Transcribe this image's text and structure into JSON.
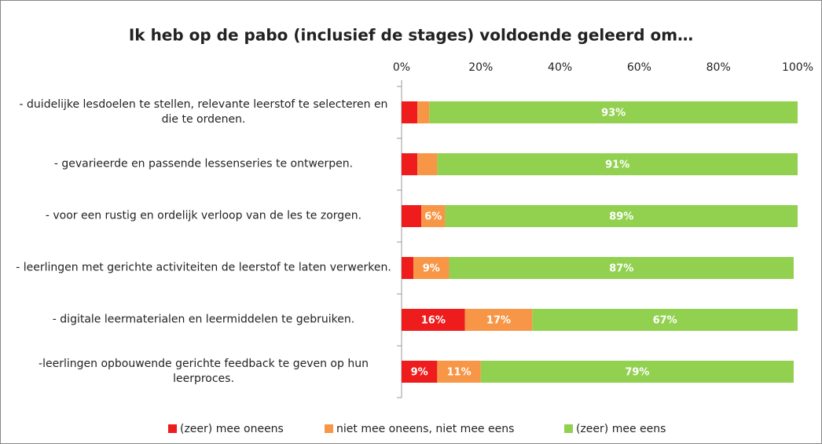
{
  "chart_data": {
    "type": "stacked_bar_horizontal",
    "title": "Ik heb op de pabo (inclusief de stages) voldoende geleerd om…",
    "categories": [
      "- duidelijke lesdoelen te stellen, relevante leerstof te selecteren en die te ordenen.",
      "- gevarieerde en passende lessenseries te ontwerpen.",
      "- voor een rustig en ordelijk verloop van de les  te zorgen.",
      "- leerlingen met gerichte activiteiten de leerstof te laten verwerken.",
      "- digitale leermaterialen en leermiddelen te gebruiken.",
      "-leerlingen opbouwende gerichte feedback te geven op hun leerproces."
    ],
    "series": [
      {
        "name": "(zeer) mee oneens",
        "color": "#ee1c1c",
        "values": [
          4,
          4,
          5,
          3,
          16,
          9
        ],
        "value_labels": [
          null,
          null,
          null,
          null,
          "16%",
          "9%"
        ]
      },
      {
        "name": "niet mee oneens, niet mee eens",
        "color": "#f79646",
        "values": [
          3,
          5,
          6,
          9,
          17,
          11
        ],
        "value_labels": [
          null,
          null,
          "6%",
          "9%",
          "17%",
          "11%"
        ]
      },
      {
        "name": "(zeer) mee eens",
        "color": "#92d050",
        "values": [
          93,
          91,
          89,
          87,
          67,
          79
        ],
        "value_labels": [
          "93%",
          "91%",
          "89%",
          "87%",
          "67%",
          "79%"
        ]
      }
    ],
    "xlim": [
      0,
      100
    ],
    "xticks": [
      {
        "value": 0,
        "label": "0%"
      },
      {
        "value": 20,
        "label": "20%"
      },
      {
        "value": 40,
        "label": "40%"
      },
      {
        "value": 60,
        "label": "60%"
      },
      {
        "value": 80,
        "label": "80%"
      },
      {
        "value": 100,
        "label": "100%"
      }
    ],
    "legend": "bottom"
  }
}
